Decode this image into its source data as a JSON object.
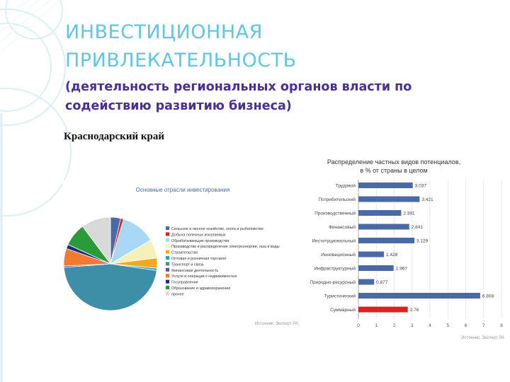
{
  "slide": {
    "title_lines": [
      "ИНВЕСТИЦИОННАЯ",
      "ПРИВЛЕКАТЕЛЬНОСТЬ"
    ],
    "subtitle_lines": [
      "(деятельность региональных органов власти по",
      "содействию развитию бизнеса)"
    ],
    "region": "Краснодарский край",
    "colors": {
      "title": "#5cc7e6",
      "subtitle": "#4a2f96",
      "bar": "#4a6aa5",
      "bar_highlight": "#e02020"
    }
  },
  "chart_data": [
    {
      "type": "pie",
      "title": "Основные отрасли инвестирования",
      "source": "Источник: Эксперт РА",
      "categories": [
        "Сельское и лесное хозяйство, охота и рыболовство",
        "Добыча полезных ископаемых",
        "Обрабатывающие производства",
        "Производство и распределение электроэнергии, газа и воды",
        "Строительство",
        "Оптовая и розничная торговля",
        "Транспорт и связь",
        "Финансовая деятельность",
        "Услуги и операции с недвижимостью",
        "Госуправление",
        "Образование и здравоохранение",
        "прочее"
      ],
      "values": [
        3.5,
        1,
        12,
        6.5,
        3.5,
        0.8,
        46.5,
        0.5,
        6,
        1.5,
        8,
        10.2
      ],
      "colors": [
        "#4a6aa5",
        "#e02020",
        "#a9d8f5",
        "#f5f0b8",
        "#f5a623",
        "#2aa8b8",
        "#3d8fa8",
        "#6a4a9a",
        "#f07a30",
        "#1a2f7a",
        "#2a9a3a",
        "#d9d9d9"
      ]
    },
    {
      "type": "bar",
      "orientation": "horizontal",
      "title_lines": [
        "Распределение частных видов потенциалов,",
        "в % от страны в целом"
      ],
      "source": "Источник: Эксперт РА",
      "categories": [
        "Трудовой",
        "Потребительский",
        "Производственный",
        "Финансовый",
        "Институциональный",
        "Инновационный",
        "Инфраструктурный",
        "Природно-ресурсный",
        "Туристический",
        "Суммарный"
      ],
      "values": [
        3.037,
        3.421,
        2.391,
        2.841,
        3.129,
        1.428,
        1.967,
        0.877,
        6.808,
        2.76
      ],
      "value_labels": [
        "3.037",
        "3.421",
        "2.391",
        "2.841",
        "3.129",
        "1.428",
        "1.967",
        "0.877",
        "6.808",
        "2.76"
      ],
      "highlight": "Суммарный",
      "xlim": [
        0,
        8
      ],
      "xticks": [
        "0",
        "1",
        "2",
        "3",
        "4",
        "5",
        "6",
        "7",
        "8"
      ]
    }
  ]
}
